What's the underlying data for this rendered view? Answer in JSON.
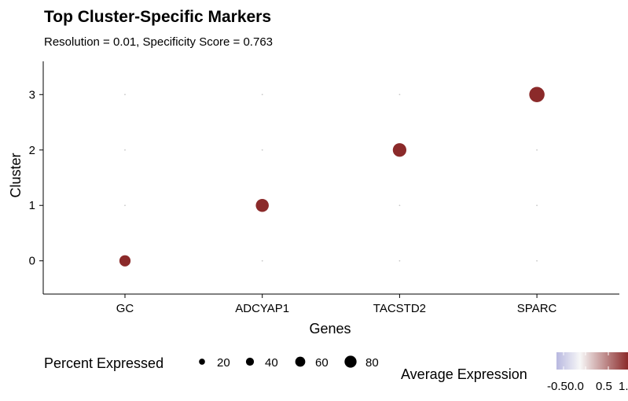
{
  "chart_data": {
    "type": "scatter",
    "title": "Top Cluster-Specific Markers",
    "subtitle": "Resolution = 0.01, Specificity Score = 0.763",
    "xlabel": "Genes",
    "ylabel": "Cluster",
    "categories": [
      "GC",
      "ADCYAP1",
      "TACSTD2",
      "SPARC"
    ],
    "clusters": [
      "0",
      "1",
      "2",
      "3"
    ],
    "points": [
      {
        "gene": "GC",
        "cluster": "0",
        "pct_exp": 55,
        "avg_exp": 1.5
      },
      {
        "gene": "ADCYAP1",
        "cluster": "1",
        "pct_exp": 70,
        "avg_exp": 1.5
      },
      {
        "gene": "TACSTD2",
        "cluster": "2",
        "pct_exp": 75,
        "avg_exp": 1.5
      },
      {
        "gene": "SPARC",
        "cluster": "3",
        "pct_exp": 90,
        "avg_exp": 1.5
      },
      {
        "gene": "GC",
        "cluster": "1",
        "pct_exp": 0,
        "avg_exp": -0.5
      },
      {
        "gene": "GC",
        "cluster": "2",
        "pct_exp": 0,
        "avg_exp": -0.5
      },
      {
        "gene": "GC",
        "cluster": "3",
        "pct_exp": 0,
        "avg_exp": -0.5
      },
      {
        "gene": "ADCYAP1",
        "cluster": "0",
        "pct_exp": 0,
        "avg_exp": -0.5
      },
      {
        "gene": "ADCYAP1",
        "cluster": "2",
        "pct_exp": 0,
        "avg_exp": -0.5
      },
      {
        "gene": "ADCYAP1",
        "cluster": "3",
        "pct_exp": 0,
        "avg_exp": -0.5
      },
      {
        "gene": "TACSTD2",
        "cluster": "0",
        "pct_exp": 0,
        "avg_exp": -0.5
      },
      {
        "gene": "TACSTD2",
        "cluster": "1",
        "pct_exp": 0,
        "avg_exp": -0.5
      },
      {
        "gene": "TACSTD2",
        "cluster": "3",
        "pct_exp": 0,
        "avg_exp": -0.5
      },
      {
        "gene": "SPARC",
        "cluster": "0",
        "pct_exp": 0,
        "avg_exp": -0.5
      },
      {
        "gene": "SPARC",
        "cluster": "1",
        "pct_exp": 0,
        "avg_exp": -0.5
      },
      {
        "gene": "SPARC",
        "cluster": "2",
        "pct_exp": 0,
        "avg_exp": -0.5
      }
    ],
    "ylim": [
      -0.6,
      3.6
    ],
    "size_legend": {
      "title": "Percent Expressed",
      "values": [
        20,
        40,
        60,
        80
      ],
      "labels": [
        "20",
        "40",
        "60",
        "80"
      ]
    },
    "color_legend": {
      "title": "Average Expression",
      "labels": [
        "-0.5",
        "0.0",
        "0.5",
        "1."
      ],
      "low_color": "#b8b8e0",
      "mid_color": "#f7f7f7",
      "high_color": "#8b2a2a"
    },
    "colors": {
      "point_high": "#8b2a2a",
      "point_zero": "#c8c8c8"
    },
    "grid": false,
    "legend_position": "bottom"
  }
}
